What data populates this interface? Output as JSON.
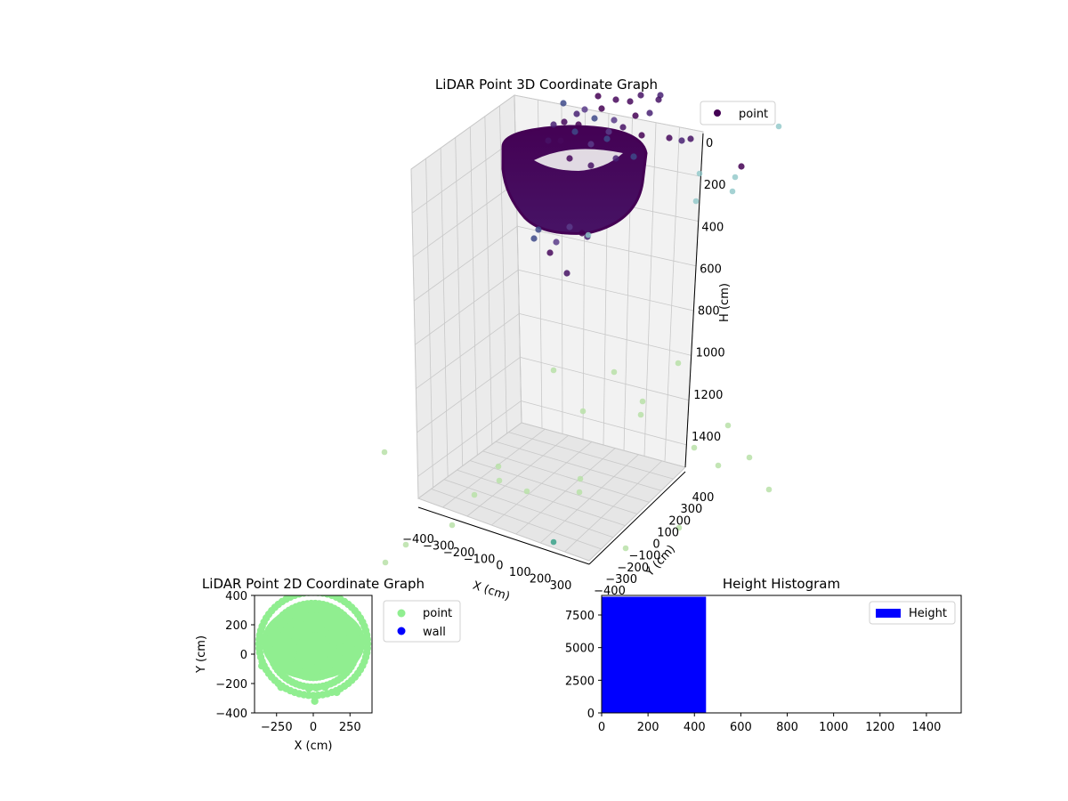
{
  "chart_data": [
    {
      "id": "scatter3d",
      "type": "scatter",
      "title": "LiDAR Point 3D Coordinate Graph",
      "xlabel": "X (cm)",
      "ylabel": "Y (cm)",
      "zlabel": "H (cm)",
      "legend": {
        "placement": "upper-right",
        "entries": [
          {
            "name": "point",
            "color": "#440154"
          }
        ]
      },
      "x_ticks": [
        "−400",
        "−300",
        "−200",
        "−100",
        "0",
        "100",
        "200",
        "300"
      ],
      "y_ticks": [
        "−400",
        "−300",
        "−200",
        "−100",
        "0",
        "100",
        "200",
        "300",
        "400"
      ],
      "z_ticks": [
        "0",
        "200",
        "400",
        "600",
        "800",
        "1000",
        "1200",
        "1400"
      ],
      "zlim": [
        1500,
        0
      ],
      "colormap": "viridis",
      "grid": true,
      "description": "Dense cluster of points near H 0–600 forming a bowl shape, plus sparse outliers up to H ≈ 1450"
    },
    {
      "id": "scatter2d",
      "type": "scatter",
      "title": "LiDAR Point 2D Coordinate Graph",
      "xlabel": "X (cm)",
      "ylabel": "Y (cm)",
      "xlim": [
        -400,
        400
      ],
      "ylim": [
        -400,
        400
      ],
      "x_ticks": [
        "−250",
        "0",
        "250"
      ],
      "y_ticks": [
        "400",
        "200",
        "0",
        "−200",
        "−400"
      ],
      "legend": {
        "placement": "outside-right",
        "entries": [
          {
            "name": "point",
            "color": "#90ee90"
          },
          {
            "name": "wall",
            "color": "#0000ff"
          }
        ]
      },
      "grid": false
    },
    {
      "id": "histogram",
      "type": "bar",
      "title": "Height Histogram",
      "xlim": [
        0,
        1550
      ],
      "ylim": [
        0,
        9000
      ],
      "x_ticks": [
        "0",
        "200",
        "400",
        "600",
        "800",
        "1000",
        "1200",
        "1400"
      ],
      "y_ticks": [
        "0",
        "2500",
        "5000",
        "7500"
      ],
      "bins": [
        {
          "x0": 0,
          "x1": 450,
          "count": 8900
        },
        {
          "x0": 450,
          "x1": 900,
          "count": 0
        },
        {
          "x0": 900,
          "x1": 1350,
          "count": 0
        }
      ],
      "legend": {
        "placement": "upper-right",
        "entries": [
          {
            "name": "Height",
            "color": "#0000ff"
          }
        ]
      },
      "grid": false
    }
  ]
}
